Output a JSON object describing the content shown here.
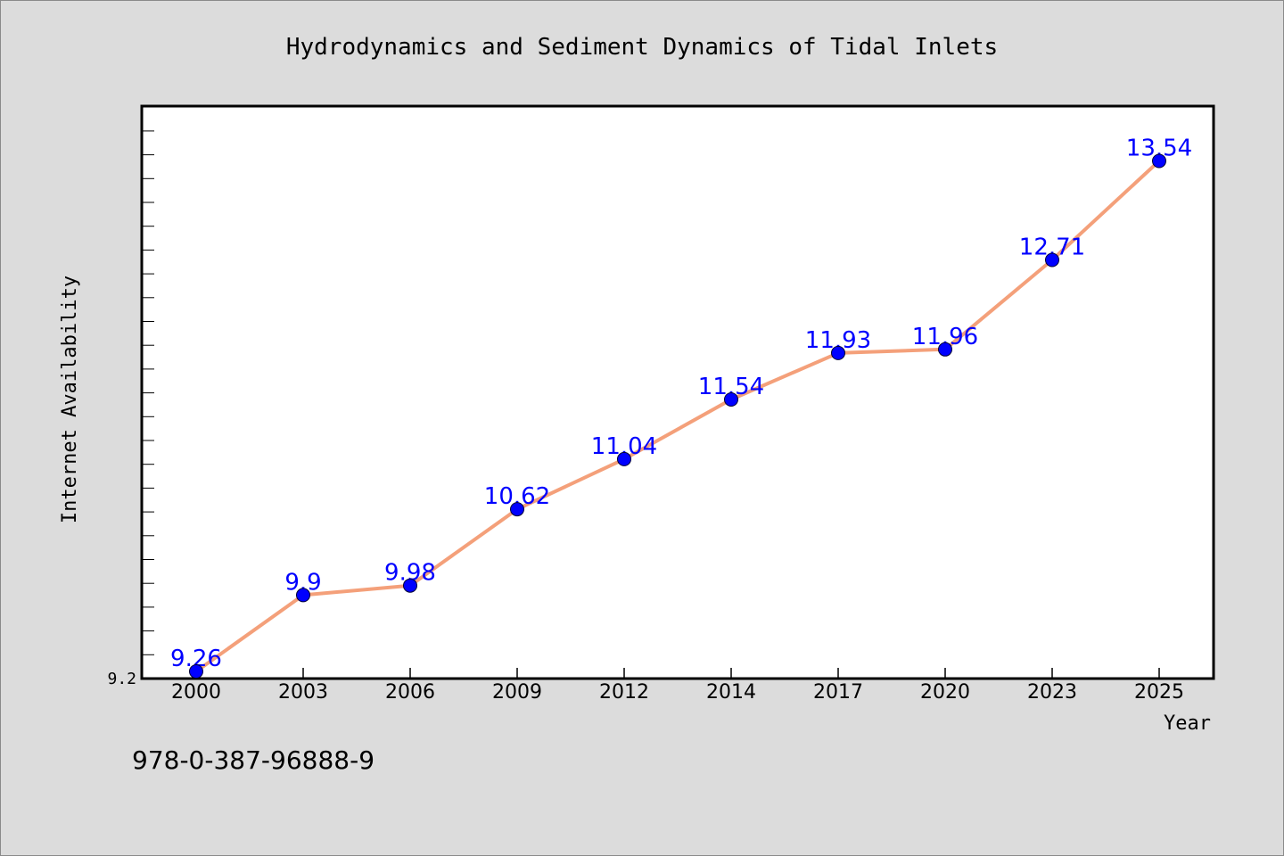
{
  "chart_data": {
    "type": "line",
    "title": "Hydrodynamics and Sediment Dynamics of Tidal Inlets",
    "xlabel": "Year",
    "ylabel": "Internet Availability",
    "x": [
      "2000",
      "2003",
      "2006",
      "2009",
      "2012",
      "2014",
      "2017",
      "2020",
      "2023",
      "2025"
    ],
    "series": [
      {
        "values": [
          9.26,
          9.9,
          9.98,
          10.62,
          11.04,
          11.54,
          11.93,
          11.96,
          12.71,
          13.54
        ],
        "data_labels": [
          "9.26",
          "9.9",
          "9.98",
          "10.62",
          "11.04",
          "11.54",
          "11.93",
          "11.96",
          "12.71",
          "13.54"
        ]
      }
    ],
    "y_tick_labels": [
      "9.2"
    ],
    "ylim": [
      9.2,
      14.0
    ],
    "grid": false,
    "colors": {
      "line": "#f4a07a",
      "marker": "#0000ff",
      "data_label": "#0000ff",
      "plot_background": "#ffffff",
      "figure_background": "#dcdcdc"
    }
  },
  "footer": {
    "isbn": "978-0-387-96888-9"
  }
}
